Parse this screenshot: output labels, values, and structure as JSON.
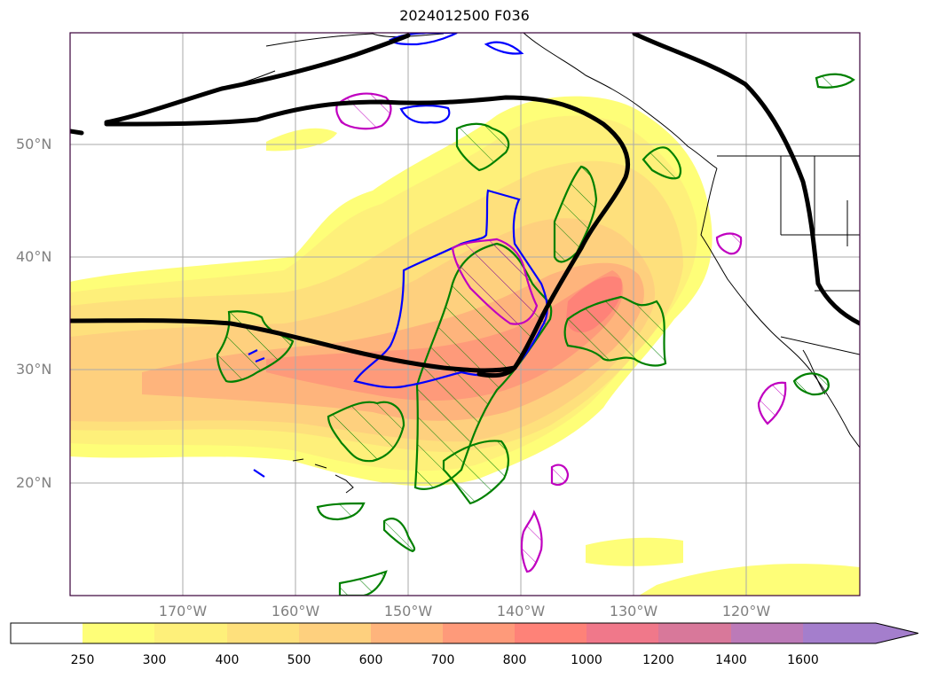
{
  "title": "2024012500 F036",
  "map": {
    "lat_labels": [
      "50°N",
      "40°N",
      "30°N",
      "20°N"
    ],
    "lon_labels": [
      "170°W",
      "160°W",
      "150°W",
      "140°W",
      "130°W",
      "120°W"
    ],
    "gridlines": true
  },
  "colorbar": {
    "tick_labels": [
      "250",
      "300",
      "400",
      "500",
      "600",
      "700",
      "800",
      "1000",
      "1200",
      "1400",
      "1600"
    ],
    "colors": [
      "#ffffff",
      "#fefe78",
      "#fef07a",
      "#fee07c",
      "#fed07e",
      "#feb47c",
      "#fe9a7a",
      "#fe8278",
      "#f0788a",
      "#d8789a",
      "#bc7ab8",
      "#a47ecc"
    ],
    "extend": "max"
  },
  "contour_colors": {
    "jet_outline": "#000000",
    "green_hatched": "#008000",
    "blue_outline": "#0000ff",
    "magenta_hatched": "#c000c0",
    "land_outline": "#000000"
  }
}
